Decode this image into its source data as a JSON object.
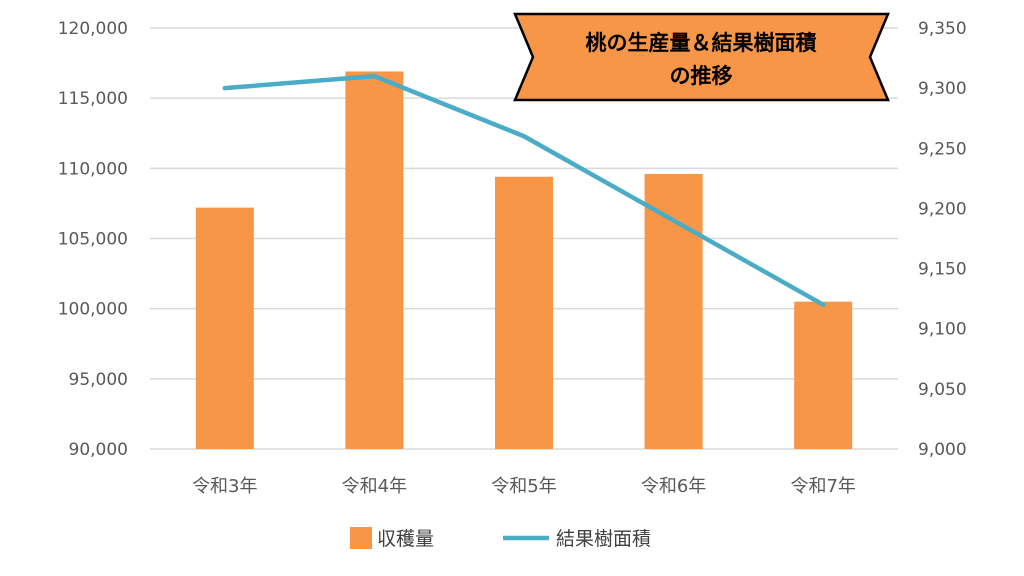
{
  "chart_data": {
    "type": "bar+line",
    "title": [
      "桃の生産量＆結果樹面積",
      "の推移"
    ],
    "categories": [
      "令和3年",
      "令和4年",
      "令和5年",
      "令和6年",
      "令和7年"
    ],
    "series": [
      {
        "name": "収穫量",
        "type": "bar",
        "axis": "left",
        "color": "#F79646",
        "values": [
          107200,
          116900,
          109400,
          109600,
          100500
        ]
      },
      {
        "name": "結果樹面積",
        "type": "line",
        "axis": "right",
        "color": "#4BACC6",
        "values": [
          9300,
          9310,
          9260,
          9190,
          9120
        ]
      }
    ],
    "y_left": {
      "min": 90000,
      "max": 120000,
      "step": 5000,
      "ticks": [
        "90,000",
        "95,000",
        "100,000",
        "105,000",
        "110,000",
        "115,000",
        "120,000"
      ]
    },
    "y_right": {
      "min": 9000,
      "max": 9350,
      "step": 50,
      "ticks": [
        "9,000",
        "9,050",
        "9,100",
        "9,150",
        "9,200",
        "9,250",
        "9,300",
        "9,350"
      ]
    },
    "grid": true,
    "legend": "bottom",
    "title_box_color": "#F79646"
  }
}
